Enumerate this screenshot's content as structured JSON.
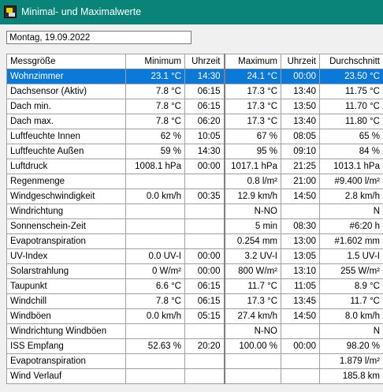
{
  "window": {
    "title": "Minimal- und Maximalwerte"
  },
  "date_field": "Montag, 19.09.2022",
  "table": {
    "columns": [
      "Messgröße",
      "Minimum",
      "Uhrzeit",
      "Maximum",
      "Uhrzeit",
      "Durchschnitt"
    ],
    "rows": [
      [
        "Wohnzimmer",
        "23.1 °C",
        "14:30",
        "24.1 °C",
        "00:00",
        "23.50 °C"
      ],
      [
        "Dachsensor (Aktiv)",
        "7.8 °C",
        "06:15",
        "17.3 °C",
        "13:40",
        "11.75 °C"
      ],
      [
        "Dach min.",
        "7.8 °C",
        "06:15",
        "17.3 °C",
        "13:50",
        "11.70 °C"
      ],
      [
        "Dach max.",
        "7.8 °C",
        "06:20",
        "17.3 °C",
        "13:40",
        "11.80 °C"
      ],
      [
        "Luftfeuchte Innen",
        "62 %",
        "10:05",
        "67 %",
        "08:05",
        "65 %"
      ],
      [
        "Luftfeuchte Außen",
        "59 %",
        "14:30",
        "95 %",
        "09:10",
        "84 %"
      ],
      [
        "Luftdruck",
        "1008.1 hPa",
        "00:00",
        "1017.1 hPa",
        "21:25",
        "1013.1 hPa"
      ],
      [
        "Regenmenge",
        "",
        "",
        "0.8 l/m²",
        "21:00",
        "#9.400 l/m²"
      ],
      [
        "Windgeschwindigkeit",
        "0.0 km/h",
        "00:35",
        "12.9 km/h",
        "14:50",
        "2.8 km/h"
      ],
      [
        "Windrichtung",
        "",
        "",
        "N-NO",
        "",
        "N"
      ],
      [
        "Sonnenschein-Zeit",
        "",
        "",
        "5 min",
        "08:30",
        "#6:20 h"
      ],
      [
        "Evapotranspiration",
        "",
        "",
        "0.254 mm",
        "13:00",
        "#1.602 mm"
      ],
      [
        "UV-Index",
        "0.0 UV-I",
        "00:00",
        "3.2 UV-I",
        "13:05",
        "1.5 UV-I"
      ],
      [
        "Solarstrahlung",
        "0 W/m²",
        "00:00",
        "800 W/m²",
        "13:10",
        "255 W/m²"
      ],
      [
        "Taupunkt",
        "6.6 °C",
        "06:15",
        "11.7 °C",
        "11:05",
        "8.9 °C"
      ],
      [
        "Windchill",
        "7.8 °C",
        "06:15",
        "17.3 °C",
        "13:45",
        "11.7 °C"
      ],
      [
        "Windböen",
        "0.0 km/h",
        "05:15",
        "27.4 km/h",
        "14:50",
        "8.0 km/h"
      ],
      [
        "Windrichtung Windböen",
        "",
        "",
        "N-NO",
        "",
        "N"
      ],
      [
        "ISS Empfang",
        "52.63 %",
        "20:20",
        "100.00 %",
        "00:00",
        "98.20 %"
      ],
      [
        "Evapotranspiration",
        "",
        "",
        "",
        "",
        "1.879 l/m²"
      ],
      [
        "Wind Verlauf",
        "",
        "",
        "",
        "",
        "185.8 km"
      ]
    ],
    "selected_row": 0
  },
  "colors": {
    "titlebar": "#0a8478",
    "selection": "#0b79d8"
  }
}
